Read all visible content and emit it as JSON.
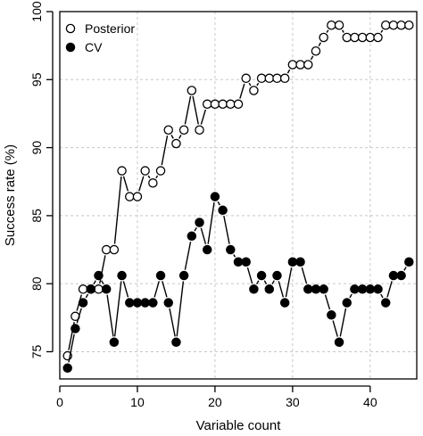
{
  "chart_data": {
    "type": "line",
    "title": "",
    "xlabel": "Variable count",
    "ylabel": "Success rate (%)",
    "xlim": [
      0,
      46
    ],
    "ylim": [
      73,
      100
    ],
    "x_ticks": [
      0,
      10,
      20,
      30,
      40
    ],
    "y_ticks": [
      75,
      80,
      85,
      90,
      95,
      100
    ],
    "grid": true,
    "legend_position": "top-left",
    "x": [
      1,
      2,
      3,
      4,
      5,
      6,
      7,
      8,
      9,
      10,
      11,
      12,
      13,
      14,
      15,
      16,
      17,
      18,
      19,
      20,
      21,
      22,
      23,
      24,
      25,
      26,
      27,
      28,
      29,
      30,
      31,
      32,
      33,
      34,
      35,
      36,
      37,
      38,
      39,
      40,
      41,
      42,
      43,
      44,
      45
    ],
    "series": [
      {
        "name": "Posterior",
        "marker": "open-circle",
        "values": [
          74.7,
          77.6,
          79.6,
          79.6,
          79.6,
          82.5,
          82.5,
          88.3,
          86.4,
          86.4,
          88.3,
          87.4,
          88.3,
          91.3,
          90.3,
          91.3,
          94.2,
          91.3,
          93.2,
          93.2,
          93.2,
          93.2,
          93.2,
          95.1,
          94.2,
          95.1,
          95.1,
          95.1,
          95.1,
          96.1,
          96.1,
          96.1,
          97.1,
          98.1,
          99.0,
          99.0,
          98.1,
          98.1,
          98.1,
          98.1,
          98.1,
          99.0,
          99.0,
          99.0,
          99.0
        ]
      },
      {
        "name": "CV",
        "marker": "filled-circle",
        "values": [
          73.8,
          76.7,
          78.6,
          79.6,
          80.6,
          79.6,
          75.7,
          80.6,
          78.6,
          78.6,
          78.6,
          78.6,
          80.6,
          78.6,
          75.7,
          80.6,
          83.5,
          84.5,
          82.5,
          86.4,
          85.4,
          82.5,
          81.6,
          81.6,
          79.6,
          80.6,
          79.6,
          80.6,
          78.6,
          81.6,
          81.6,
          79.6,
          79.6,
          79.6,
          77.7,
          75.7,
          78.6,
          79.6,
          79.6,
          79.6,
          79.6,
          78.6,
          80.6,
          80.6,
          81.6
        ]
      }
    ]
  }
}
